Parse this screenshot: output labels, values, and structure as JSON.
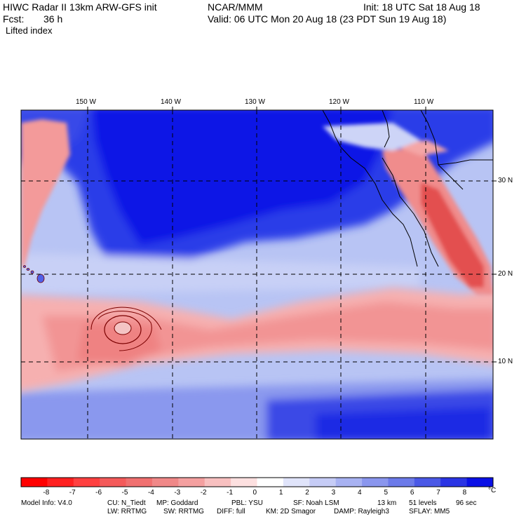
{
  "header": {
    "title": "HIWC Radar II 13km ARW-GFS init",
    "source": "NCAR/MMM",
    "init": "Init: 18 UTC Sat 18 Aug 18",
    "fcst_label": "Fcst:",
    "fcst_value": "36 h",
    "valid": "Valid: 06 UTC Mon 20 Aug 18 (23 PDT Sun 19 Aug 18)",
    "field": "Lifted index"
  },
  "map": {
    "lon_labels": [
      "150 W",
      "140 W",
      "130 W",
      "120 W",
      "110 W"
    ],
    "lat_labels": [
      "30 N",
      "20 N",
      "10 N"
    ],
    "colors": {
      "deep_blue": "#0000e6",
      "mid_blue": "#5a6ef0",
      "light_blue": "#b8c4f4",
      "white": "#f4f4ff",
      "light_red": "#f6b4b4",
      "mid_red": "#ef8080",
      "deep_red": "#e85858",
      "contour": "#7a0000"
    }
  },
  "colorbar": {
    "ticks": [
      "-8",
      "-7",
      "-6",
      "-5",
      "-4",
      "-3",
      "-2",
      "-1",
      "0",
      "1",
      "2",
      "3",
      "4",
      "5",
      "6",
      "7",
      "8"
    ],
    "unit": "°C",
    "colors": [
      "#ff0000",
      "#ff2020",
      "#ff4040",
      "#f45a5a",
      "#f07070",
      "#f08888",
      "#f4a0a0",
      "#f8c0c0",
      "#fde0e0",
      "#ffffff",
      "#e0e4fa",
      "#c6ccf6",
      "#a8b2f2",
      "#8a96ee",
      "#6c7ae9",
      "#4a58e6",
      "#2a34e4",
      "#0a10e6"
    ]
  },
  "footer": {
    "line1": [
      "Model Info: V4.0",
      "CU: N_Tiedt",
      "MP: Goddard",
      "PBL: YSU",
      "SF: Noah LSM",
      "13 km",
      "51 levels",
      "96 sec"
    ],
    "line2": [
      "LW: RRTMG",
      "SW: RRTMG",
      "DIFF: full",
      "KM: 2D Smagor",
      "DAMP: Rayleigh3",
      "SFLAY: MM5"
    ]
  }
}
